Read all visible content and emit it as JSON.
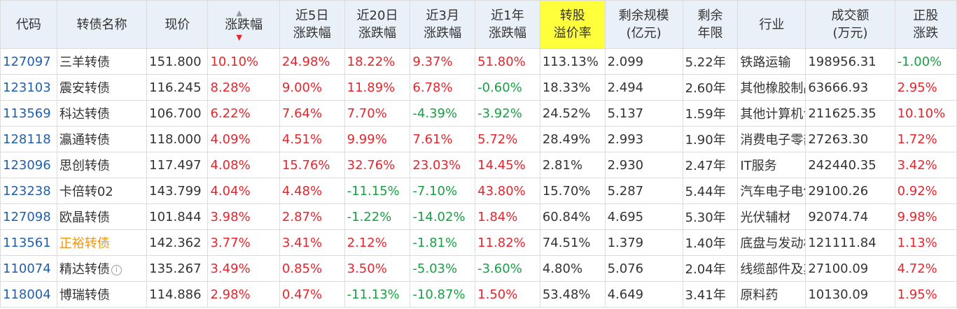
{
  "headers": {
    "code": "代码",
    "name": "转债名称",
    "price": "现价",
    "change": "涨跌幅",
    "d5_1": "近5日",
    "d5_2": "涨跌幅",
    "d20_1": "近20日",
    "d20_2": "涨跌幅",
    "m3_1": "近3月",
    "m3_2": "涨跌幅",
    "y1_1": "近1年",
    "y1_2": "涨跌幅",
    "premium_1": "转股",
    "premium_2": "溢价率",
    "scale_1": "剩余规模",
    "scale_2": "(亿元)",
    "years_1": "剩余",
    "years_2": "年限",
    "industry": "行业",
    "volume_1": "成交额",
    "volume_2": "(万元)",
    "stock_1": "正股",
    "stock_2": "涨跌"
  },
  "sort_icons": {
    "up": "▲",
    "down": "▼"
  },
  "info_icon": "i",
  "rows": [
    {
      "code": "127097",
      "name": "三羊转债",
      "price": "151.800",
      "change": "10.10%",
      "d5": "24.98%",
      "d20": "18.22%",
      "m3": "9.37%",
      "y1": "51.80%",
      "premium": "113.13%",
      "scale": "2.099",
      "years": "5.22年",
      "industry": "铁路运输",
      "volume": "198956.31",
      "stock": "-1.00%"
    },
    {
      "code": "123103",
      "name": "震安转债",
      "price": "116.245",
      "change": "8.28%",
      "d5": "9.00%",
      "d20": "11.89%",
      "m3": "6.78%",
      "y1": "-0.60%",
      "premium": "18.33%",
      "scale": "2.494",
      "years": "2.60年",
      "industry": "其他橡胶制品",
      "volume": "63666.93",
      "stock": "2.95%"
    },
    {
      "code": "113569",
      "name": "科达转债",
      "price": "106.700",
      "change": "6.22%",
      "d5": "7.64%",
      "d20": "7.70%",
      "m3": "-4.39%",
      "y1": "-3.92%",
      "premium": "24.52%",
      "scale": "5.137",
      "years": "1.59年",
      "industry": "其他计算机设备",
      "volume": "211625.35",
      "stock": "10.10%"
    },
    {
      "code": "128118",
      "name": "瀛通转债",
      "price": "118.000",
      "change": "4.09%",
      "d5": "4.51%",
      "d20": "9.99%",
      "m3": "7.61%",
      "y1": "5.72%",
      "premium": "28.49%",
      "scale": "2.993",
      "years": "1.90年",
      "industry": "消费电子零部件及组装",
      "volume": "27263.30",
      "stock": "1.72%"
    },
    {
      "code": "123096",
      "name": "思创转债",
      "price": "117.497",
      "change": "4.08%",
      "d5": "15.76%",
      "d20": "32.76%",
      "m3": "23.03%",
      "y1": "14.45%",
      "premium": "2.81%",
      "scale": "2.930",
      "years": "2.47年",
      "industry": "IT服务",
      "volume": "242440.35",
      "stock": "3.42%"
    },
    {
      "code": "123238",
      "name": "卡倍转02",
      "price": "143.799",
      "change": "4.04%",
      "d5": "4.48%",
      "d20": "-11.15%",
      "m3": "-7.10%",
      "y1": "43.80%",
      "premium": "15.70%",
      "scale": "5.287",
      "years": "5.44年",
      "industry": "汽车电子电气系统",
      "volume": "29100.26",
      "stock": "0.92%"
    },
    {
      "code": "127098",
      "name": "欧晶转债",
      "price": "101.844",
      "change": "3.98%",
      "d5": "2.87%",
      "d20": "-1.22%",
      "m3": "-14.02%",
      "y1": "1.84%",
      "premium": "60.84%",
      "scale": "4.695",
      "years": "5.30年",
      "industry": "光伏辅材",
      "volume": "92074.74",
      "stock": "9.98%"
    },
    {
      "code": "113561",
      "name": "正裕转债",
      "price": "142.362",
      "change": "3.77%",
      "d5": "3.41%",
      "d20": "2.12%",
      "m3": "-1.81%",
      "y1": "11.82%",
      "premium": "74.51%",
      "scale": "1.379",
      "years": "1.40年",
      "industry": "底盘与发动机系统",
      "volume": "121111.84",
      "stock": "1.13%"
    },
    {
      "code": "110074",
      "name": "精达转债",
      "price": "135.267",
      "change": "3.49%",
      "d5": "0.85%",
      "d20": "3.50%",
      "m3": "-5.03%",
      "y1": "-3.60%",
      "premium": "4.80%",
      "scale": "5.076",
      "years": "2.04年",
      "industry": "线缆部件及其他",
      "volume": "27100.09",
      "stock": "4.72%"
    },
    {
      "code": "118004",
      "name": "博瑞转债",
      "price": "114.886",
      "change": "2.98%",
      "d5": "0.47%",
      "d20": "-11.13%",
      "m3": "-10.87%",
      "y1": "1.50%",
      "premium": "53.48%",
      "scale": "4.649",
      "years": "3.41年",
      "industry": "原料药",
      "volume": "10130.09",
      "stock": "1.95%"
    }
  ],
  "colors": {
    "up": "#e8242c",
    "down": "#18a043",
    "code": "#1f5fb0",
    "highlight_name": "#f0960c",
    "header_bg": "#eaf0f8",
    "premium_header_bg": "#ffff3c"
  }
}
